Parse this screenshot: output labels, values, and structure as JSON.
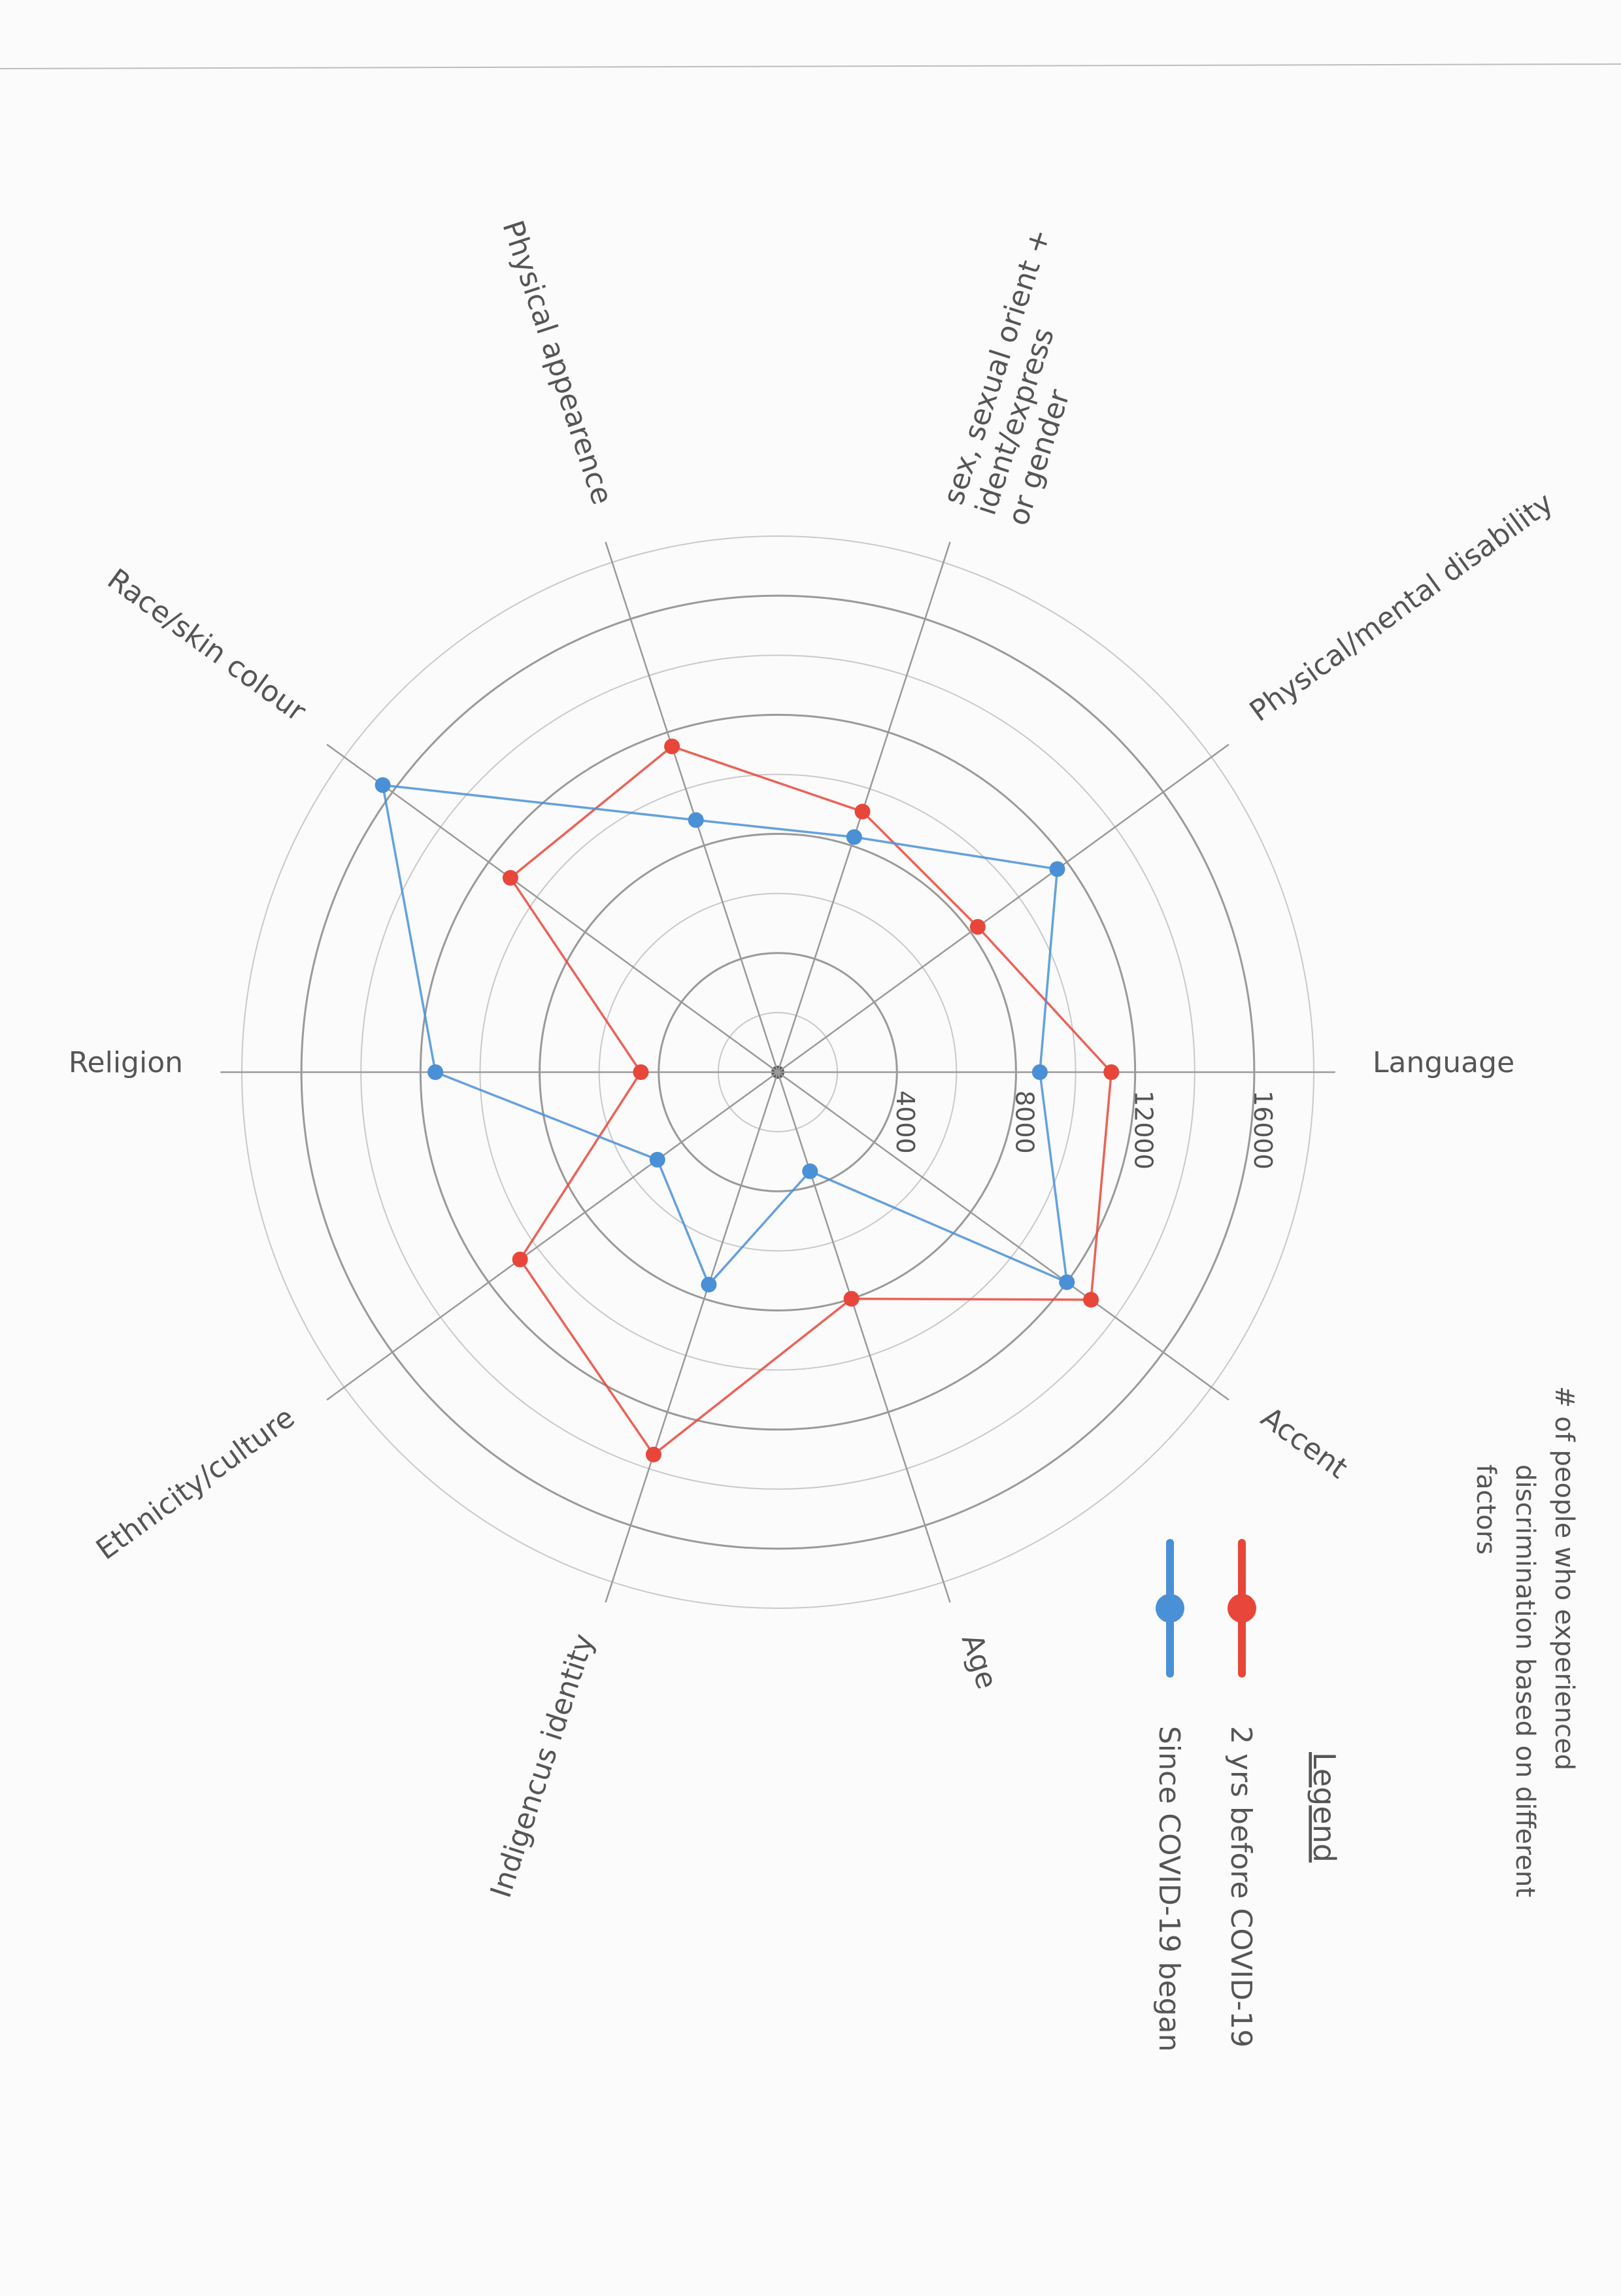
{
  "chart_data": {
    "type": "radar",
    "title": "# of people who experienced discrimination based on different factors",
    "categories": [
      "Language",
      "Physical/mental disability",
      "Sex, sexual orient + ident/express or gender",
      "Physical appearence",
      "Race/skin colour",
      "Religion",
      "Ethnicity/culture",
      "Indigencus identity",
      "Age",
      "Accent"
    ],
    "category_lines": {
      "Sex, sexual orient + ident/express or gender": [
        "sex, sexual orient +",
        "ident/express",
        "or gender"
      ]
    },
    "radial_ticks": [
      4000,
      8000,
      12000,
      16000
    ],
    "rlim": [
      0,
      18000
    ],
    "series": [
      {
        "name": "2 yrs before COVID-19",
        "color": "#e8463a",
        "values": [
          11200,
          8300,
          9200,
          11500,
          11100,
          4600,
          10700,
          13500,
          8000,
          13000
        ]
      },
      {
        "name": "Since COVID-19 began",
        "color": "#4a90d6",
        "values": [
          8800,
          11600,
          8300,
          8900,
          16400,
          11500,
          5000,
          7500,
          3500,
          12000
        ]
      }
    ],
    "legend": {
      "title": "Legend",
      "position": "bottom-right"
    },
    "grid": true
  }
}
